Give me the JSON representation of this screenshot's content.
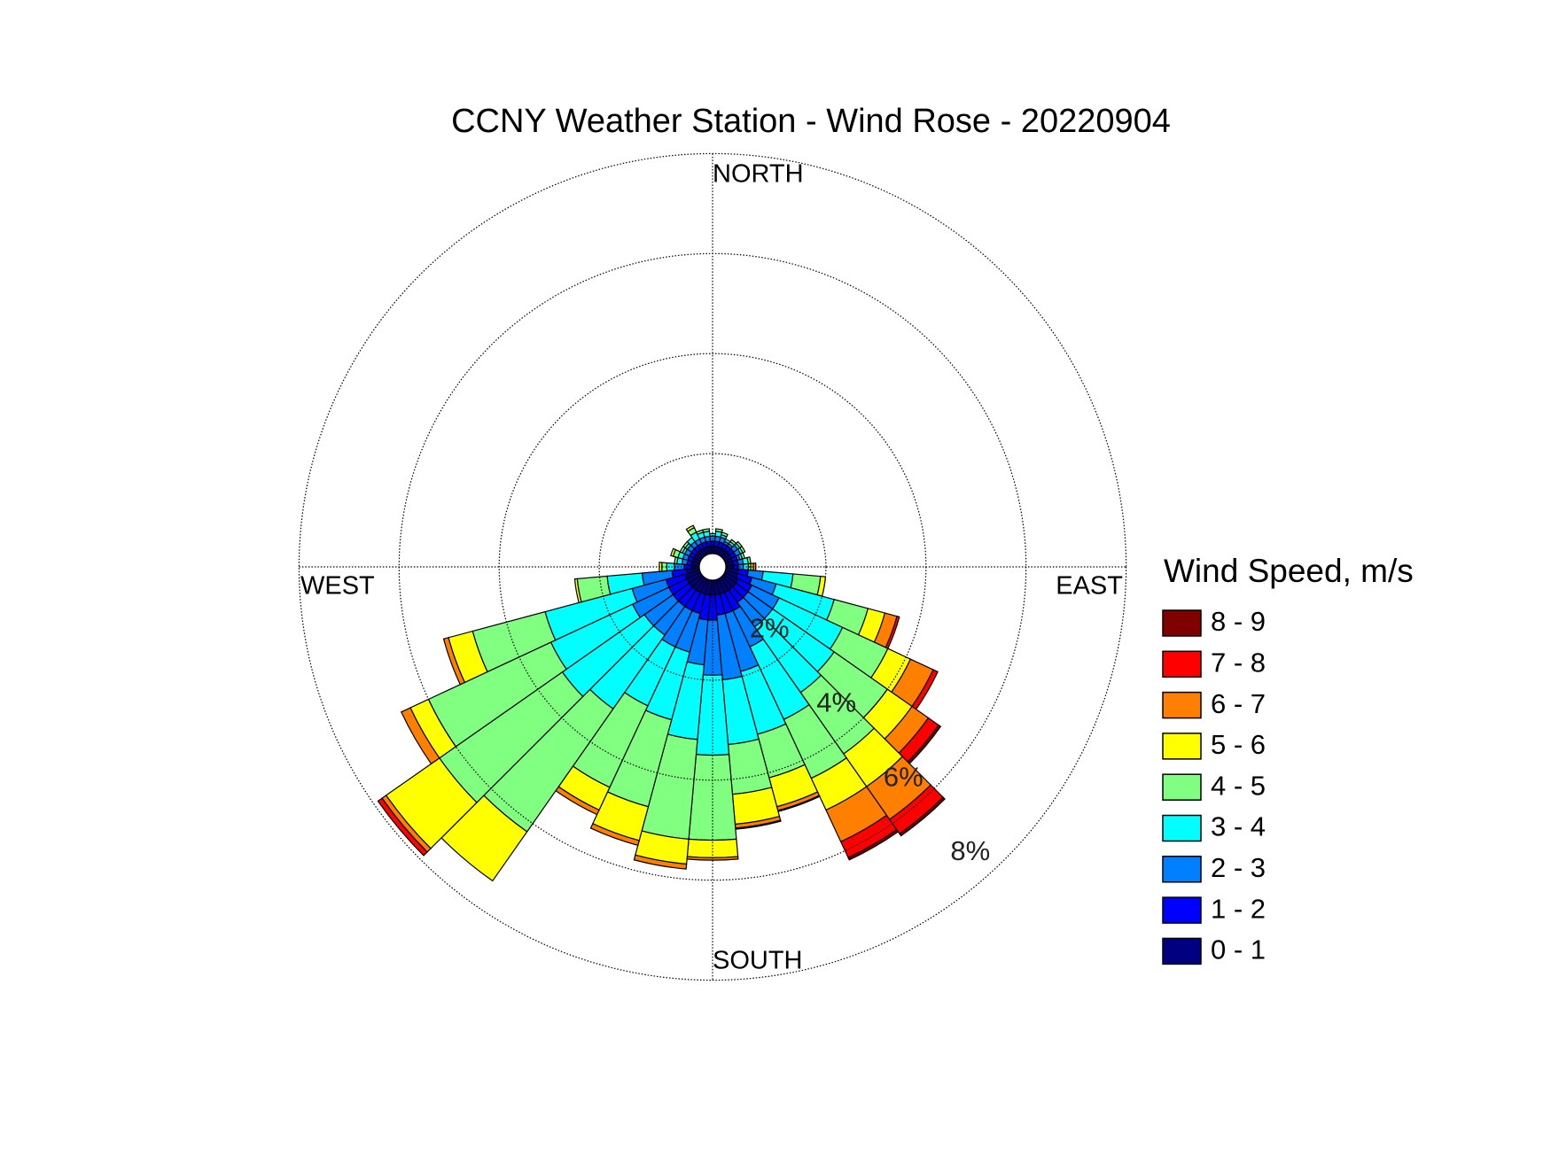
{
  "chart_data": {
    "type": "windrose",
    "title": "CCNY Weather Station - Wind Rose - 20220904",
    "legend_title": "Wind Speed, m/s",
    "direction_labels": [
      "NORTH",
      "EAST",
      "SOUTH",
      "WEST"
    ],
    "rlim": [
      0,
      8
    ],
    "rticks": [
      {
        "value": 2,
        "label": "2%"
      },
      {
        "value": 4,
        "label": "4%"
      },
      {
        "value": 6,
        "label": "6%"
      },
      {
        "value": 8,
        "label": "8%"
      }
    ],
    "grid": true,
    "categories": [
      null,
      null,
      null,
      null,
      null,
      null,
      null,
      null,
      null,
      null,
      null,
      null,
      null,
      null,
      null,
      null,
      null,
      null,
      null,
      null,
      null,
      null,
      null,
      null,
      null,
      null,
      null,
      null,
      null,
      null,
      null,
      null,
      null,
      null,
      null,
      null
    ],
    "series": [
      {
        "name": "0 - 1",
        "color": "#000080",
        "values": [
          0.15,
          0.15,
          0.15,
          0.15,
          0.15,
          0.15,
          0.15,
          0.15,
          0.15,
          0.15,
          0.25,
          0.25,
          0.3,
          0.3,
          0.3,
          0.3,
          0.3,
          0.3,
          0.3,
          0.3,
          0.3,
          0.3,
          0.3,
          0.3,
          0.3,
          0.3,
          0.25,
          0.15,
          0.15,
          0.15,
          0.15,
          0.15,
          0.15,
          0.15,
          0.15,
          0.15
        ]
      },
      {
        "name": "1 - 2",
        "color": "#0000ff",
        "values": [
          0.1,
          0.1,
          0.1,
          0.1,
          0.1,
          0.1,
          0.1,
          0.1,
          0.1,
          0.1,
          0.2,
          0.3,
          0.3,
          0.3,
          0.3,
          0.4,
          0.4,
          0.4,
          0.5,
          0.5,
          0.4,
          0.4,
          0.4,
          0.4,
          0.4,
          0.4,
          0.3,
          0.15,
          0.1,
          0.1,
          0.1,
          0.1,
          0.1,
          0.1,
          0.1,
          0.1
        ]
      },
      {
        "name": "2 - 3",
        "color": "#0080ff",
        "values": [
          0.1,
          0.1,
          0.1,
          0.05,
          0.05,
          0.1,
          0.1,
          0.05,
          0.1,
          0.1,
          0.3,
          0.5,
          0.6,
          0.6,
          0.6,
          0.8,
          1.2,
          1.3,
          1.1,
          0.9,
          0.8,
          0.8,
          0.7,
          0.7,
          0.8,
          0.7,
          0.6,
          0.2,
          0.1,
          0.1,
          0.1,
          0.1,
          0.1,
          0.1,
          0.1,
          0.1
        ]
      },
      {
        "name": "3 - 4",
        "color": "#00ffff",
        "values": [
          0.05,
          0.1,
          0.05,
          0.05,
          0.05,
          0.05,
          0.05,
          0.05,
          0.1,
          0.1,
          0.6,
          1.2,
          1.4,
          1.5,
          1.6,
          1.6,
          1.3,
          1.3,
          1.6,
          1.5,
          1.4,
          1.3,
          1.8,
          2.0,
          1.8,
          1.8,
          0.7,
          0.15,
          0.1,
          0.1,
          0.05,
          0.05,
          0.1,
          0.15,
          0.1,
          0.1
        ]
      },
      {
        "name": "4 - 5",
        "color": "#80ff80",
        "values": [
          0,
          0.05,
          0.05,
          0,
          0.05,
          0.05,
          0.05,
          0.05,
          0.05,
          0.05,
          0.55,
          0.7,
          1.0,
          1.3,
          1.5,
          1.3,
          0.9,
          1.0,
          1.7,
          2.0,
          1.8,
          1.8,
          3.0,
          3.0,
          2.7,
          1.5,
          0.6,
          0.1,
          0.05,
          0.1,
          0.05,
          0.05,
          0,
          0.1,
          0.05,
          0.05
        ]
      },
      {
        "name": "5 - 6",
        "color": "#ffff00",
        "values": [
          0,
          0,
          0,
          0,
          0,
          0,
          0,
          0,
          0,
          0.05,
          0.1,
          0.35,
          0.5,
          0.6,
          0.8,
          0.7,
          0.6,
          0.6,
          0.35,
          0.5,
          0.7,
          0.5,
          1.2,
          1.3,
          0.4,
          0.5,
          0.05,
          0.05,
          0,
          0.05,
          0,
          0,
          0,
          0.05,
          0,
          0
        ]
      },
      {
        "name": "6 - 7",
        "color": "#ff8000",
        "values": [
          0,
          0,
          0,
          0,
          0,
          0,
          0,
          0,
          0,
          0.05,
          0,
          0.25,
          0.5,
          0.4,
          0.8,
          0.7,
          0.08,
          0.08,
          0.05,
          0.1,
          0.1,
          0.1,
          0,
          0.1,
          0.2,
          0.1,
          0,
          0,
          0,
          0,
          0,
          0,
          0,
          0,
          0,
          0
        ]
      },
      {
        "name": "7 - 8",
        "color": "#ff0000",
        "values": [
          0,
          0,
          0,
          0,
          0,
          0,
          0,
          0,
          0,
          0,
          0,
          0.05,
          0.1,
          0.25,
          0.35,
          0.35,
          0.02,
          0.02,
          0,
          0,
          0,
          0,
          0,
          0.1,
          0,
          0,
          0,
          0,
          0,
          0,
          0,
          0,
          0,
          0,
          0,
          0
        ]
      },
      {
        "name": "8 - 9",
        "color": "#800000",
        "values": [
          0,
          0,
          0,
          0,
          0,
          0,
          0,
          0,
          0,
          0,
          0,
          0,
          0,
          0.05,
          0.05,
          0.05,
          0,
          0,
          0,
          0,
          0,
          0,
          0,
          0,
          0,
          0,
          0,
          0,
          0,
          0,
          0,
          0,
          0,
          0,
          0,
          0
        ]
      }
    ]
  }
}
